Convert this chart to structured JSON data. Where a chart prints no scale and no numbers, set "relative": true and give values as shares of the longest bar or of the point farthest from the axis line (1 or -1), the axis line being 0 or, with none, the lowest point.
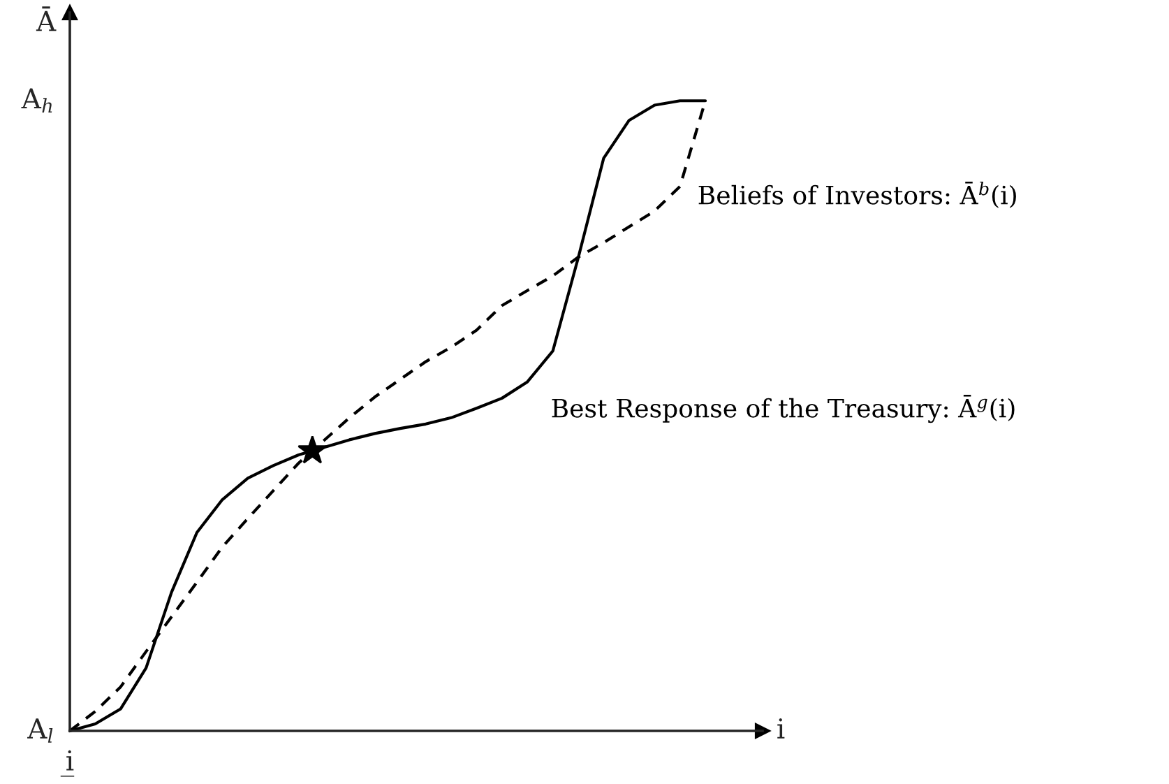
{
  "chart_data": {
    "type": "line",
    "xlabel": "i",
    "ylabel": "Ā",
    "categories": [
      null,
      null,
      null,
      null,
      null,
      null,
      null,
      null,
      null,
      null,
      null,
      null,
      null,
      null,
      null,
      null,
      null,
      null,
      null,
      null,
      null,
      null,
      null,
      null,
      null,
      null
    ],
    "relative": true,
    "annotations": [
      "A$_{l}$",
      "A$_{h}$",
      "i̲"
    ],
    "grid": false,
    "legend": false,
    "series": [
      {
        "name": "Best Response of the Treasury: Ā$^{g}$(i)",
        "color": "#000000",
        "line_style": "solid",
        "marker": "none",
        "values": [
          0,
          0.011,
          0.035,
          0.1,
          0.22,
          0.315,
          0.367,
          0.401,
          0.421,
          0.438,
          0.45,
          0.462,
          0.472,
          0.48,
          0.487,
          0.497,
          0.512,
          0.528,
          0.554,
          0.603,
          0.751,
          0.909,
          0.969,
          0.993,
          1,
          1
        ]
      },
      {
        "name": "Beliefs of Investors: Ā$^{b}$(i)",
        "color": "#000000",
        "line_style": "dashed",
        "marker": "none",
        "values": [
          0,
          0.031,
          0.07,
          0.126,
          0.181,
          0.236,
          0.292,
          0.337,
          0.381,
          0.425,
          0.461,
          0.497,
          0.53,
          0.558,
          0.586,
          0.609,
          0.636,
          0.675,
          0.699,
          0.722,
          0.752,
          0.775,
          0.8,
          0.825,
          0.864,
          1
        ]
      }
    ]
  }
}
